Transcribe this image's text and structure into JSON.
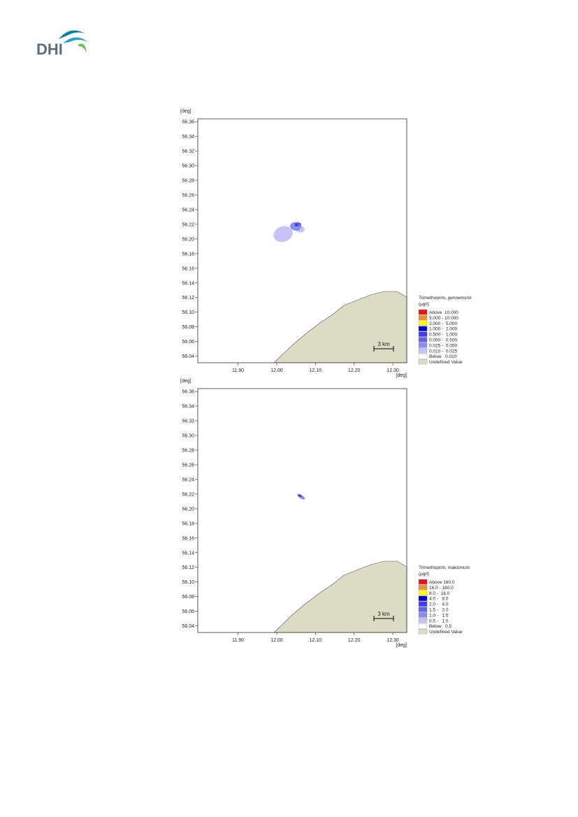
{
  "logo": "DHI",
  "chart_data": [
    {
      "type": "contour",
      "x_label": "[deg]",
      "y_label": "[deg]",
      "xlim": [
        11.796,
        12.336
      ],
      "ylim": [
        56.031,
        56.364
      ],
      "xticks": [
        {
          "value": 11.9,
          "label": "11.90"
        },
        {
          "value": 12.0,
          "label": "12.00"
        },
        {
          "value": 12.1,
          "label": "12.10"
        },
        {
          "value": 12.2,
          "label": "12.20"
        },
        {
          "value": 12.3,
          "label": "12.30"
        }
      ],
      "yticks": [
        56.04,
        56.06,
        56.08,
        {
          "value": 56.1,
          "label": "56.10"
        },
        56.12,
        56.14,
        56.16,
        56.18,
        {
          "value": 56.2,
          "label": "56.20"
        },
        56.22,
        56.24,
        56.26,
        56.28,
        {
          "value": 56.3,
          "label": "56.30"
        },
        56.32,
        56.34,
        56.36
      ],
      "scale_label": "3 km",
      "legend_title": "Trimethoprim, gennemsnit",
      "legend_unit": "(µg/l)",
      "series": [
        {
          "name": "Above  10.000",
          "color": "#e8141c"
        },
        {
          "name": "5.000 - 10.000",
          "color": "#f39030"
        },
        {
          "name": "2.000 -  5.000",
          "color": "#ffff00"
        },
        {
          "name": "1.000 -  2.000",
          "color": "#0000d8"
        },
        {
          "name": "0.500 -  1.000",
          "color": "#3c3cf0"
        },
        {
          "name": "0.050 -  0.500",
          "color": "#6464e8"
        },
        {
          "name": "0.025 -  0.050",
          "color": "#8c8cee"
        },
        {
          "name": "0.010 -  0.025",
          "color": "#c4c4f6"
        },
        {
          "name": "Below   0.010",
          "color": "#ffffff"
        },
        {
          "name": "Undefined Value",
          "color": "#dcdcc4"
        }
      ]
    },
    {
      "type": "contour",
      "x_label": "[deg]",
      "y_label": "[deg]",
      "xlim": [
        11.796,
        12.336
      ],
      "ylim": [
        56.031,
        56.364
      ],
      "xticks": [
        {
          "value": 11.9,
          "label": "11.90"
        },
        {
          "value": 12.0,
          "label": "12.00"
        },
        {
          "value": 12.1,
          "label": "12.10"
        },
        {
          "value": 12.2,
          "label": "12.20"
        },
        {
          "value": 12.3,
          "label": "12.30"
        }
      ],
      "yticks": [
        56.04,
        56.06,
        56.08,
        {
          "value": 56.1,
          "label": "56.10"
        },
        56.12,
        56.14,
        56.16,
        56.18,
        {
          "value": 56.2,
          "label": "56.20"
        },
        56.22,
        56.24,
        56.26,
        56.28,
        {
          "value": 56.3,
          "label": "56.30"
        },
        56.32,
        56.34,
        56.36
      ],
      "scale_label": "3 km",
      "legend_title": "Trimethoprim, maksimum",
      "legend_unit": "(µg/l)",
      "series": [
        {
          "name": "Above 160.0",
          "color": "#e8141c"
        },
        {
          "name": "16.0 - 160.0",
          "color": "#f39030"
        },
        {
          "name": "8.0 -  16.0",
          "color": "#ffff00"
        },
        {
          "name": "4.0 -   8.0",
          "color": "#0000d8"
        },
        {
          "name": "2.0 -   4.0",
          "color": "#3c3cf0"
        },
        {
          "name": "1.5 -   2.0",
          "color": "#6464e8"
        },
        {
          "name": "1.0 -   1.5",
          "color": "#8c8cee"
        },
        {
          "name": "0.5 -   1.0",
          "color": "#c4c4f6"
        },
        {
          "name": "Below   0.5",
          "color": "#ffffff"
        },
        {
          "name": "Undefined Value",
          "color": "#dcdcc4"
        }
      ]
    }
  ]
}
